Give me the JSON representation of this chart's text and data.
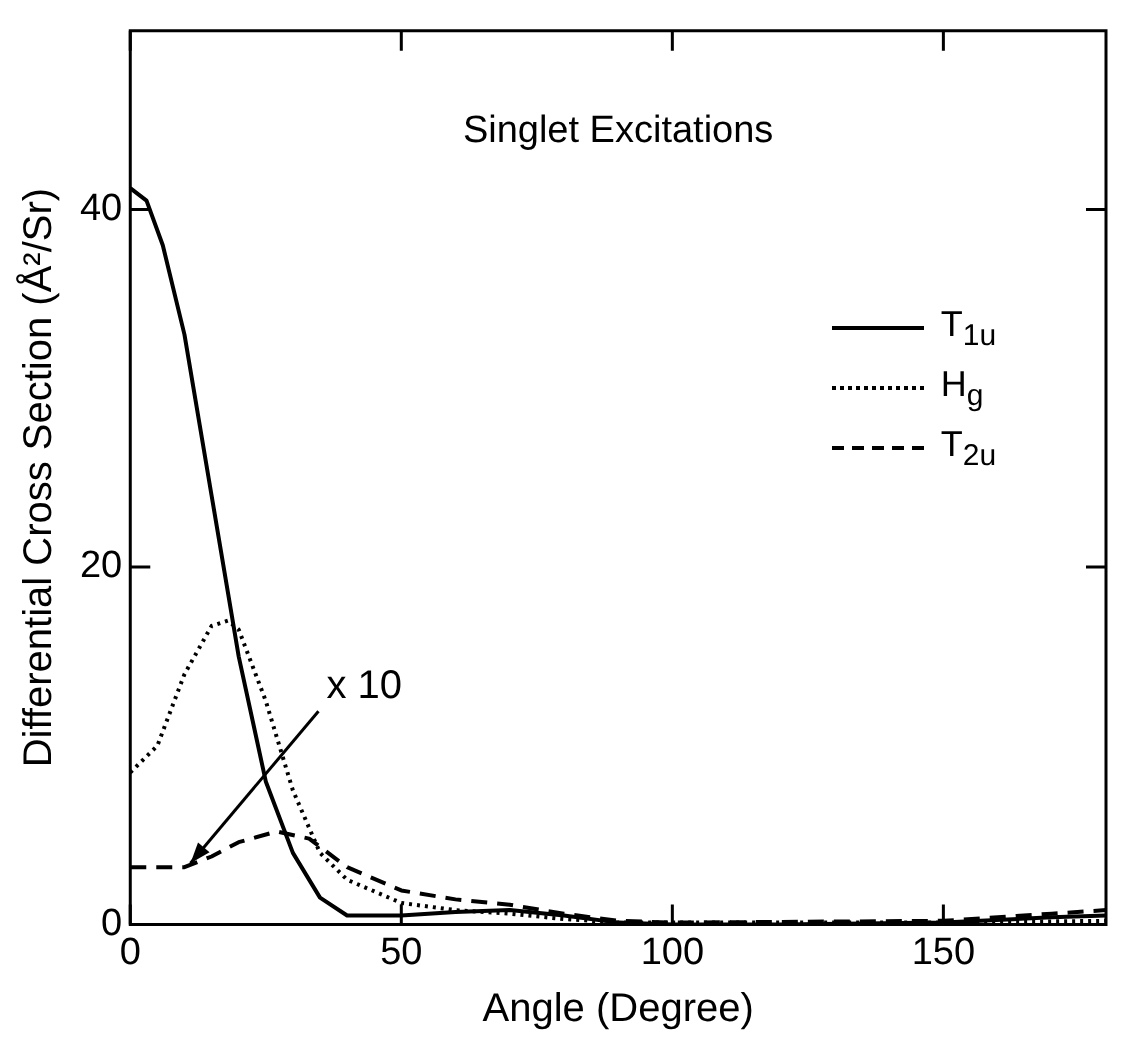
{
  "chart_data": {
    "type": "line",
    "title": "Singlet Excitations",
    "xlabel": "Angle (Degree)",
    "ylabel": "Differential Cross Section (Å²/Sr)",
    "xlim": [
      0,
      180
    ],
    "xticks": [
      0,
      50,
      100,
      150
    ],
    "ylim": [
      0,
      50
    ],
    "yticks": [
      0,
      20,
      40
    ],
    "grid": false,
    "legend": "right",
    "marker": "none",
    "annotations": [
      {
        "text": "x 10",
        "x": 10,
        "y": 3.2
      }
    ],
    "series": [
      {
        "name": "T$_{1u}$",
        "color": "#000000",
        "line_style": "solid",
        "x": [
          0,
          3,
          6,
          10,
          15,
          20,
          25,
          30,
          35,
          40,
          50,
          60,
          70,
          80,
          90,
          100,
          120,
          150,
          170,
          180
        ],
        "values": [
          41.2,
          40.5,
          38,
          33,
          24,
          15,
          8,
          4,
          1.5,
          0.5,
          0.5,
          0.7,
          0.8,
          0.5,
          0.1,
          0,
          0,
          0.1,
          0.4,
          0.5
        ]
      },
      {
        "name": "H$_{g}$",
        "color": "#000000",
        "line_style": "dotted",
        "x": [
          0,
          5,
          10,
          15,
          18,
          20,
          25,
          30,
          35,
          40,
          50,
          60,
          70,
          80,
          90,
          100,
          150,
          180
        ],
        "values": [
          8.5,
          10,
          14,
          16.7,
          17,
          16.5,
          12.5,
          7.5,
          4,
          2.5,
          1.2,
          0.8,
          0.6,
          0.3,
          0.1,
          0.1,
          0.1,
          0.2
        ]
      },
      {
        "name": "T$_{2u}$",
        "color": "#000000",
        "line_style": "dashed",
        "x": [
          0,
          10,
          15,
          20,
          27,
          33,
          40,
          50,
          60,
          70,
          80,
          90,
          100,
          150,
          170,
          180
        ],
        "values": [
          3.2,
          3.2,
          3.8,
          4.6,
          5.2,
          4.8,
          3.2,
          1.9,
          1.4,
          1.1,
          0.6,
          0.2,
          0.1,
          0.2,
          0.6,
          0.8
        ]
      }
    ]
  }
}
